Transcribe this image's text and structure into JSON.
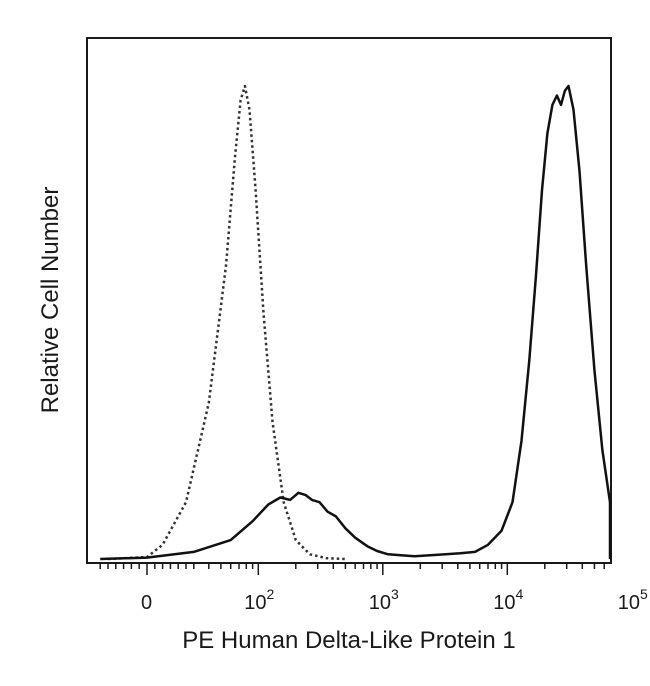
{
  "chart_data": {
    "type": "line",
    "title": "",
    "xlabel": "PE Human Delta-Like Protein 1",
    "ylabel": "Relative Cell Number",
    "x_scale": "biexponential",
    "xlim": [
      -30,
      300000
    ],
    "ylim": [
      0,
      1.05
    ],
    "grid": false,
    "legend": "none",
    "x_ticks": [
      {
        "label": "0",
        "base": "0",
        "exp": "",
        "value": 0
      },
      {
        "label": "10^2",
        "base": "10",
        "exp": "2",
        "value": 100
      },
      {
        "label": "10^3",
        "base": "10",
        "exp": "3",
        "value": 1000
      },
      {
        "label": "10^4",
        "base": "10",
        "exp": "4",
        "value": 10000
      },
      {
        "label": "10^5",
        "base": "10",
        "exp": "5",
        "value": 100000
      }
    ],
    "series": [
      {
        "style": "dotted",
        "color": "#333333",
        "x": [
          -25,
          0,
          10,
          25,
          40,
          55,
          65,
          72,
          78,
          85,
          95,
          110,
          130,
          160,
          200,
          260,
          350,
          500
        ],
        "y": [
          0.0,
          0.004,
          0.03,
          0.12,
          0.33,
          0.62,
          0.85,
          0.97,
          1.0,
          0.95,
          0.78,
          0.52,
          0.29,
          0.12,
          0.04,
          0.01,
          0.002,
          0.0
        ]
      },
      {
        "style": "solid",
        "color": "#111111",
        "x": [
          -30,
          0,
          30,
          60,
          90,
          120,
          150,
          180,
          210,
          240,
          270,
          310,
          360,
          420,
          500,
          600,
          750,
          900,
          1100,
          1400,
          1800,
          2400,
          3200,
          4200,
          5500,
          7000,
          9000,
          11000,
          13000,
          15000,
          17000,
          19000,
          21000,
          23000,
          25000,
          27000,
          29000,
          31000,
          34000,
          38000,
          43000,
          50000,
          58000,
          67000,
          78000,
          95000,
          120000,
          160000,
          250000
        ],
        "y": [
          0.0,
          0.003,
          0.015,
          0.04,
          0.08,
          0.115,
          0.13,
          0.125,
          0.14,
          0.135,
          0.125,
          0.12,
          0.1,
          0.09,
          0.065,
          0.045,
          0.027,
          0.017,
          0.01,
          0.008,
          0.006,
          0.008,
          0.01,
          0.012,
          0.015,
          0.03,
          0.06,
          0.12,
          0.25,
          0.42,
          0.6,
          0.78,
          0.9,
          0.96,
          0.98,
          0.96,
          0.99,
          1.0,
          0.95,
          0.82,
          0.62,
          0.4,
          0.23,
          0.12,
          0.06,
          0.025,
          0.008,
          0.002,
          0.0
        ]
      }
    ]
  }
}
